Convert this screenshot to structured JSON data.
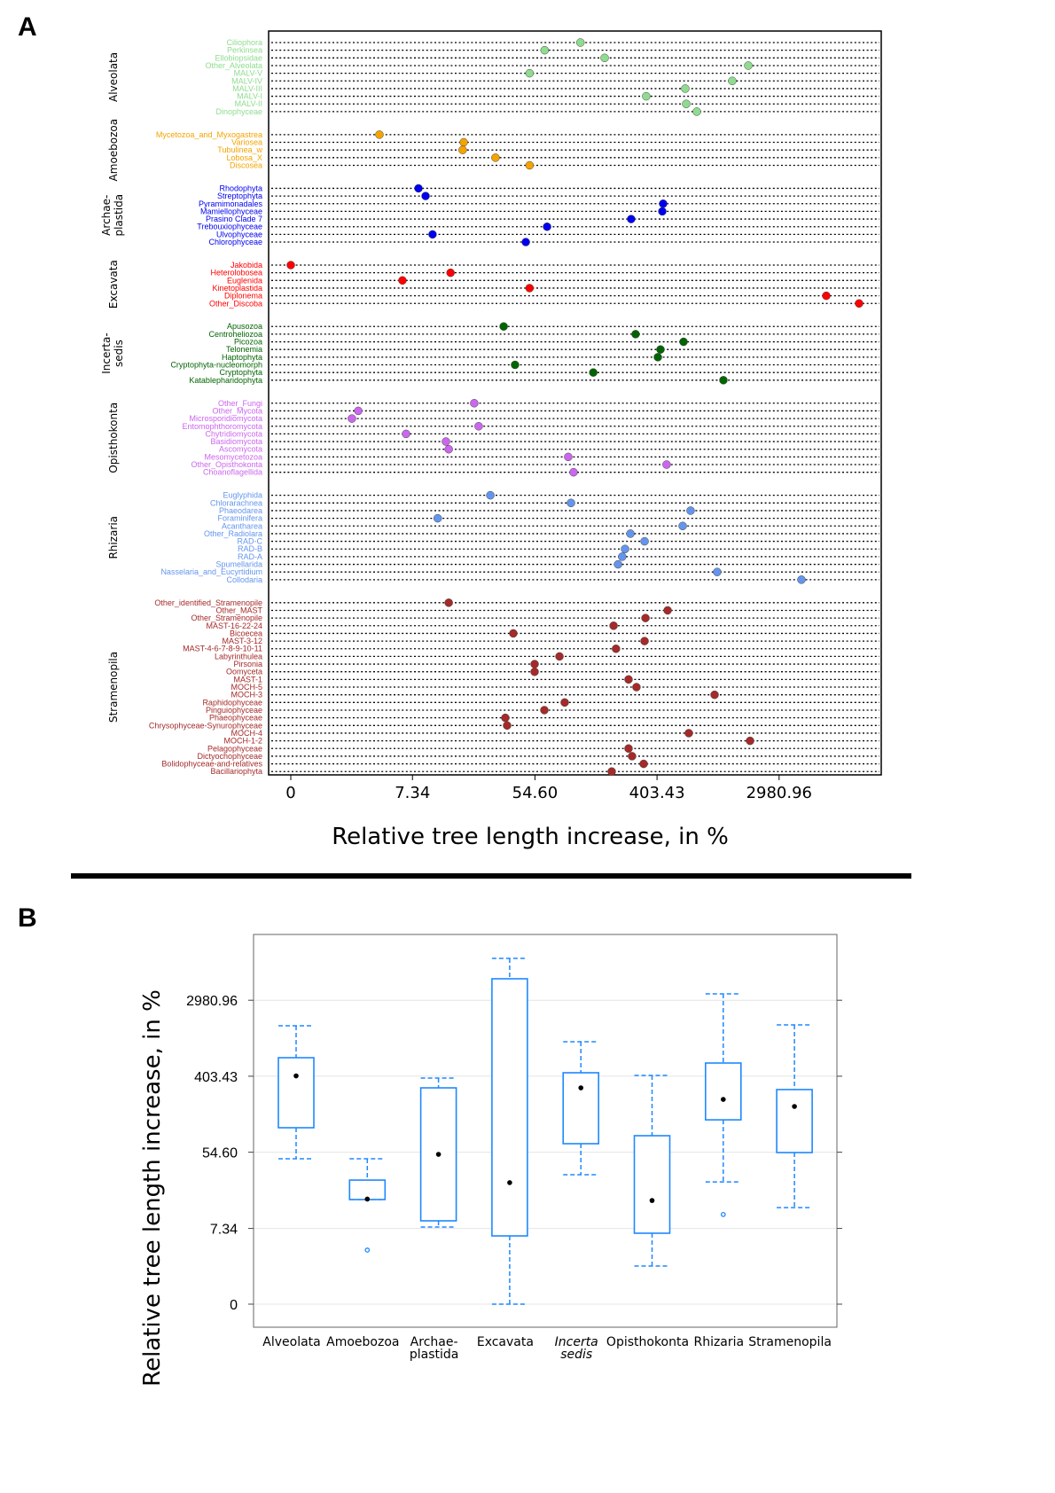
{
  "chart_data": [
    {
      "panel_label": "A",
      "type": "scatter",
      "orientation": "horizontal dot chart",
      "xlabel": "Relative tree length increase, in %",
      "x_scale": "log",
      "x_ticks": [
        0,
        7.34,
        54.6,
        403.43,
        2980.96
      ],
      "x_tick_labels": [
        "0",
        "7.34",
        "54.60",
        "403.43",
        "2980.96"
      ],
      "grid": "dotted row lines",
      "groups": [
        {
          "name_lines": [
            "Alveolata"
          ],
          "color": "#8fdc8f",
          "items": [
            {
              "label": "Ciliophora",
              "value": 115
            },
            {
              "label": "Perkinsea",
              "value": 64
            },
            {
              "label": "Ellobiopsidae",
              "value": 171
            },
            {
              "label": "Other_Alveolata",
              "value": 1800
            },
            {
              "label": "MALV-V",
              "value": 50
            },
            {
              "label": "MALV-IV",
              "value": 1384
            },
            {
              "label": "MALV-III",
              "value": 641
            },
            {
              "label": "MALV-I",
              "value": 338
            },
            {
              "label": "MALV-II",
              "value": 651
            },
            {
              "label": "Dinophyceae",
              "value": 774
            }
          ]
        },
        {
          "name_lines": [
            "Amoebozoa"
          ],
          "color": "#f5a300",
          "items": [
            {
              "label": "Mycetozoa_and_Myxogastrea",
              "value": 4.27
            },
            {
              "label": "Variosea",
              "value": 17.0
            },
            {
              "label": "Tubulinea_w",
              "value": 16.7
            },
            {
              "label": "Lobosa_X",
              "value": 28.6
            },
            {
              "label": "Discosea",
              "value": 50
            }
          ]
        },
        {
          "name_lines": [
            "Archae-",
            "plastida"
          ],
          "color": "#0000ee",
          "items": [
            {
              "label": "Rhodophyta",
              "value": 8.1
            },
            {
              "label": "Streptophyta",
              "value": 9.1
            },
            {
              "label": "Pyramimonadales",
              "value": 446
            },
            {
              "label": "Mamiellophyceae",
              "value": 440
            },
            {
              "label": "Prasino Clade 7",
              "value": 264
            },
            {
              "label": "Trebouxiophyceae",
              "value": 66.6
            },
            {
              "label": "Ulvophyceae",
              "value": 10.2
            },
            {
              "label": "Chlorophyceae",
              "value": 47.0
            }
          ]
        },
        {
          "name_lines": [
            "Excavata"
          ],
          "color": "#ff0000",
          "items": [
            {
              "label": "Jakobida",
              "value": 0
            },
            {
              "label": "Heterolobosea",
              "value": 13.7
            },
            {
              "label": "Euglenida",
              "value": 6.23
            },
            {
              "label": "Kinetoplastida",
              "value": 50
            },
            {
              "label": "Diplonema",
              "value": 6457
            },
            {
              "label": "Other_Discoba",
              "value": 11048
            }
          ]
        },
        {
          "name_lines": [
            "Incerta-",
            "sedis"
          ],
          "color": "#006400",
          "items": [
            {
              "label": "Apusozoa",
              "value": 32.7
            },
            {
              "label": "Centroheliozoa",
              "value": 284
            },
            {
              "label": "Picozoa",
              "value": 623
            },
            {
              "label": "Telonemia",
              "value": 427
            },
            {
              "label": "Haptophyta",
              "value": 409
            },
            {
              "label": "Cryptophyta-nucleomorph",
              "value": 39.4
            },
            {
              "label": "Cryptophyta",
              "value": 142
            },
            {
              "label": "Katablepharidophyta",
              "value": 1197
            }
          ]
        },
        {
          "name_lines": [
            "Opisthokonta"
          ],
          "color": "#cc66ee",
          "items": [
            {
              "label": "Other_Fungi",
              "value": 20.2
            },
            {
              "label": "Other_Mycota",
              "value": 3.02
            },
            {
              "label": "Microsporidiomycota",
              "value": 2.72
            },
            {
              "label": "Entomophthoromycota",
              "value": 21.7
            },
            {
              "label": "Chytridiomycota",
              "value": 6.61
            },
            {
              "label": "Basidiomycota",
              "value": 12.7
            },
            {
              "label": "Ascomycota",
              "value": 13.3
            },
            {
              "label": "Mesomycetozoa",
              "value": 94.2
            },
            {
              "label": "Other_Opisthokonta",
              "value": 472
            },
            {
              "label": "Choanoflagellida",
              "value": 102.8
            }
          ]
        },
        {
          "name_lines": [
            "Rhizaria"
          ],
          "color": "#6495ed",
          "items": [
            {
              "label": "Euglyphida",
              "value": 26.3
            },
            {
              "label": "Chlorarachnea",
              "value": 98.5
            },
            {
              "label": "Phaeodarea",
              "value": 699
            },
            {
              "label": "Foraminifera",
              "value": 11.1
            },
            {
              "label": "Acantharea",
              "value": 614
            },
            {
              "label": "Other_Radiolara",
              "value": 261
            },
            {
              "label": "RAD-C",
              "value": 329
            },
            {
              "label": "RAD-B",
              "value": 239
            },
            {
              "label": "RAD-A",
              "value": 228
            },
            {
              "label": "Spumellarida",
              "value": 213
            },
            {
              "label": "Nasselaria_and_Eucyrtidium",
              "value": 1081
            },
            {
              "label": "Collodaria",
              "value": 4298
            }
          ]
        },
        {
          "name_lines": [
            "Stramenopila"
          ],
          "color": "#a52a2a",
          "items": [
            {
              "label": "Other_identified_Stramenopile",
              "value": 13.3
            },
            {
              "label": "Other_MAST",
              "value": 480
            },
            {
              "label": "Other_Stramenopile",
              "value": 334
            },
            {
              "label": "MAST-16-22-24",
              "value": 198
            },
            {
              "label": "Bicoecea",
              "value": 38.3
            },
            {
              "label": "MAST-3-12",
              "value": 329
            },
            {
              "label": "MAST-4-6-7-8-9-10-11",
              "value": 206
            },
            {
              "label": "Labyrinthulea",
              "value": 81.6
            },
            {
              "label": "Pirsonia",
              "value": 54.3
            },
            {
              "label": "Oomyceta",
              "value": 54.3
            },
            {
              "label": "MAST-1",
              "value": 253
            },
            {
              "label": "MOCH-5",
              "value": 288
            },
            {
              "label": "MOCH-3",
              "value": 1036
            },
            {
              "label": "Raphidophyceae",
              "value": 88.9
            },
            {
              "label": "Pinguiophyceae",
              "value": 63.7
            },
            {
              "label": "Phaeophyceae",
              "value": 33.6
            },
            {
              "label": "Chrysophyceae-Synurophyceae",
              "value": 34.6
            },
            {
              "label": "MOCH-4",
              "value": 679
            },
            {
              "label": "MOCH-1-2",
              "value": 1852
            },
            {
              "label": "Pelagophyceae",
              "value": 253
            },
            {
              "label": "Dictyochophyceae",
              "value": 268
            },
            {
              "label": "Bolidophyceae-and-relatives",
              "value": 324
            },
            {
              "label": "Bacillariophyta",
              "value": 192
            }
          ]
        }
      ]
    },
    {
      "panel_label": "B",
      "type": "box",
      "ylabel": "Relative tree length increase, in %",
      "y_scale": "log",
      "y_ticks": [
        0,
        7.34,
        54.6,
        403.43,
        2980.96
      ],
      "y_tick_labels": [
        "0",
        "7.34",
        "54.60",
        "403.43",
        "2980.96"
      ],
      "grid": true,
      "color": "#1e88ff",
      "boxes": [
        {
          "label_lines": [
            "Alveolata"
          ],
          "italic": false,
          "whisker_low": 45.9,
          "q1": 104,
          "q3": 657,
          "whisker_high": 1523,
          "mean": 407,
          "outliers": []
        },
        {
          "label_lines": [
            "Amoebozoa"
          ],
          "italic": false,
          "whisker_low": 15.7,
          "q1": 15.7,
          "q3": 26.2,
          "whisker_high": 46,
          "mean": 15.9,
          "outliers": [
            4.15
          ]
        },
        {
          "label_lines": [
            "Archae-",
            "plastida"
          ],
          "italic": false,
          "whisker_low": 7.61,
          "q1": 8.97,
          "q3": 297,
          "whisker_high": 384,
          "mean": 51.6,
          "outliers": []
        },
        {
          "label_lines": [
            "Excavata"
          ],
          "italic": false,
          "whisker_low": 0,
          "q1": 6.03,
          "q3": 5246,
          "whisker_high": 8965,
          "mean": 24.5,
          "outliers": []
        },
        {
          "label_lines": [
            "Incerta",
            "sedis"
          ],
          "italic": true,
          "whisker_low": 30.2,
          "q1": 68.3,
          "q3": 442,
          "whisker_high": 1000,
          "mean": 297,
          "outliers": []
        },
        {
          "label_lines": [
            "Opisthokonta"
          ],
          "italic": false,
          "whisker_low": 2.73,
          "q1": 6.47,
          "q3": 84.3,
          "whisker_high": 412,
          "mean": 15.3,
          "outliers": []
        },
        {
          "label_lines": [
            "Rhizaria"
          ],
          "italic": false,
          "whisker_low": 25.0,
          "q1": 128,
          "q3": 571,
          "whisker_high": 3527,
          "mean": 219,
          "outliers": [
            10.6
          ]
        },
        {
          "label_lines": [
            "Stramenopila"
          ],
          "italic": false,
          "whisker_low": 12.7,
          "q1": 54.1,
          "q3": 284,
          "whisker_high": 1558,
          "mean": 182,
          "outliers": []
        }
      ]
    }
  ]
}
